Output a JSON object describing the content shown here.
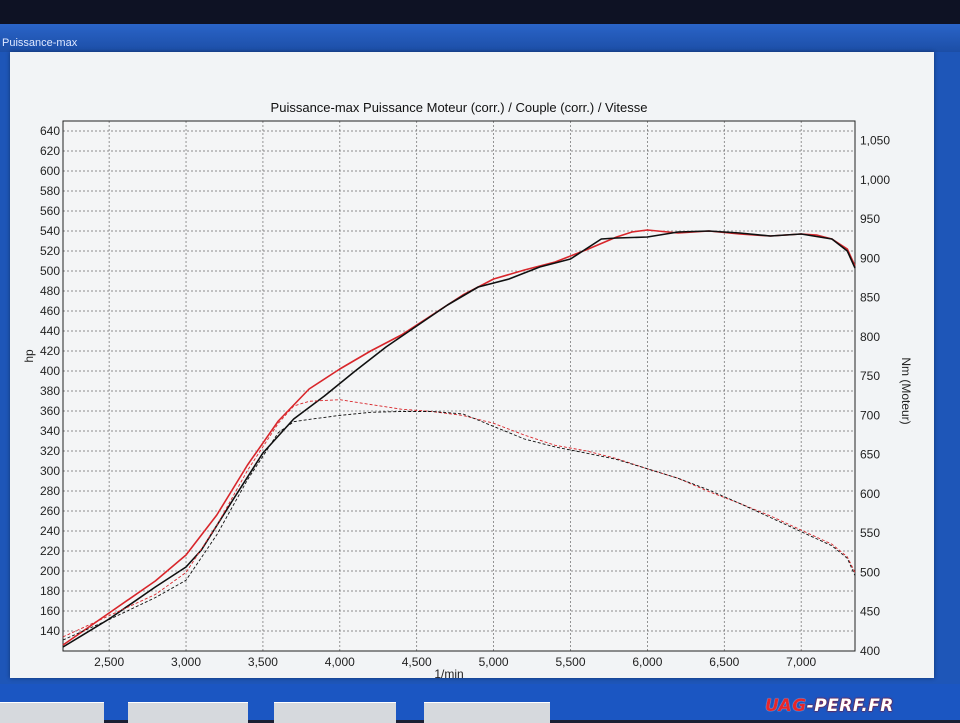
{
  "window": {
    "title": "Puissance-max"
  },
  "watermark": {
    "prefix": "UAG",
    "suffix": "-PERF.FR"
  },
  "colors": {
    "red": "#d8262b",
    "black": "#101010"
  },
  "chart_data": {
    "type": "line",
    "title": "Puissance-max Puissance Moteur (corr.) / Couple (corr.) / Vitesse",
    "xlabel": "1/min",
    "ylabel": "hp",
    "y2label": "Nm (Moteur)",
    "xlim": [
      2200,
      7350
    ],
    "ylim": [
      120,
      650
    ],
    "y2lim": [
      400,
      1075
    ],
    "xticks": [
      "2,500",
      "3,000",
      "3,500",
      "4,000",
      "4,500",
      "5,000",
      "5,500",
      "6,000",
      "6,500",
      "7,000"
    ],
    "xtick_values": [
      2500,
      3000,
      3500,
      4000,
      4500,
      5000,
      5500,
      6000,
      6500,
      7000
    ],
    "yticks": [
      140,
      160,
      180,
      200,
      220,
      240,
      260,
      280,
      300,
      320,
      340,
      360,
      380,
      400,
      420,
      440,
      460,
      480,
      500,
      520,
      540,
      560,
      580,
      600,
      620,
      640
    ],
    "y2ticks": [
      "400",
      "450",
      "500",
      "550",
      "600",
      "650",
      "700",
      "750",
      "800",
      "850",
      "900",
      "950",
      "1,000",
      "1,050"
    ],
    "y2tick_values": [
      400,
      450,
      500,
      550,
      600,
      650,
      700,
      750,
      800,
      850,
      900,
      950,
      1000,
      1050
    ],
    "grid": true,
    "series": [
      {
        "axis": "left",
        "color": "#d8262b",
        "style": "solid",
        "x": [
          2200,
          2500,
          2800,
          3000,
          3200,
          3400,
          3600,
          3800,
          4000,
          4200,
          4400,
          4600,
          4800,
          5000,
          5200,
          5400,
          5600,
          5800,
          5900,
          6000,
          6200,
          6400,
          6600,
          6800,
          7000,
          7100,
          7200,
          7300,
          7350
        ],
        "y": [
          126,
          158,
          190,
          216,
          256,
          306,
          350,
          382,
          402,
          420,
          436,
          456,
          476,
          492,
          501,
          509,
          521,
          534,
          539,
          541,
          538,
          540,
          537,
          535,
          537,
          536,
          532,
          522,
          505
        ]
      },
      {
        "axis": "left",
        "color": "#101010",
        "style": "solid",
        "x": [
          2200,
          2500,
          2800,
          3000,
          3100,
          3300,
          3500,
          3700,
          3900,
          4100,
          4300,
          4500,
          4700,
          4900,
          5100,
          5300,
          5500,
          5700,
          5800,
          6000,
          6200,
          6400,
          6600,
          6800,
          7000,
          7200,
          7300,
          7350
        ],
        "y": [
          124,
          152,
          184,
          204,
          221,
          270,
          318,
          352,
          375,
          400,
          424,
          445,
          466,
          484,
          492,
          504,
          512,
          532,
          533,
          534,
          539,
          540,
          538,
          535,
          537,
          532,
          520,
          503
        ]
      },
      {
        "axis": "right",
        "color": "#d8262b",
        "style": "dashed",
        "x": [
          2200,
          2500,
          2800,
          3000,
          3200,
          3400,
          3600,
          3700,
          3800,
          4000,
          4200,
          4400,
          4600,
          4800,
          5000,
          5200,
          5400,
          5600,
          5800,
          6000,
          6200,
          6400,
          6600,
          6800,
          7000,
          7200,
          7300,
          7350
        ],
        "y": [
          418,
          445,
          472,
          500,
          560,
          630,
          690,
          712,
          718,
          720,
          714,
          708,
          705,
          700,
          690,
          675,
          662,
          655,
          645,
          632,
          620,
          603,
          588,
          572,
          554,
          536,
          520,
          500
        ]
      },
      {
        "axis": "right",
        "color": "#101010",
        "style": "dashed",
        "x": [
          2200,
          2500,
          2800,
          3000,
          3200,
          3400,
          3600,
          3700,
          3800,
          4000,
          4200,
          4400,
          4600,
          4800,
          5000,
          5200,
          5400,
          5600,
          5800,
          6000,
          6200,
          6400,
          6600,
          6800,
          7000,
          7200,
          7300,
          7350
        ],
        "y": [
          414,
          440,
          468,
          490,
          548,
          618,
          678,
          692,
          695,
          700,
          704,
          705,
          705,
          702,
          686,
          670,
          660,
          652,
          644,
          632,
          620,
          605,
          588,
          570,
          552,
          534,
          518,
          496
        ]
      }
    ]
  }
}
